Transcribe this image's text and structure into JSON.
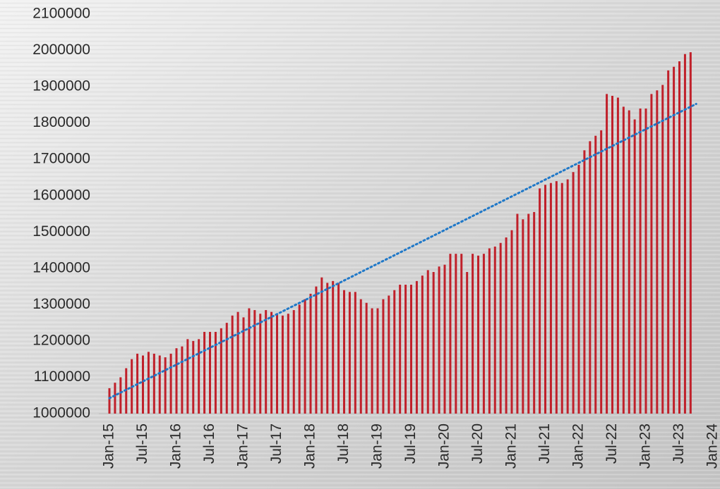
{
  "chart_data": {
    "type": "bar",
    "categories": [
      "Jan-15",
      null,
      null,
      null,
      null,
      null,
      "Jul-15",
      null,
      null,
      null,
      null,
      null,
      "Jan-16",
      null,
      null,
      null,
      null,
      null,
      "Jul-16",
      null,
      null,
      null,
      null,
      null,
      "Jan-17",
      null,
      null,
      null,
      null,
      null,
      "Jul-17",
      null,
      null,
      null,
      null,
      null,
      "Jan-18",
      null,
      null,
      null,
      null,
      null,
      "Jul-18",
      null,
      null,
      null,
      null,
      null,
      "Jan-19",
      null,
      null,
      null,
      null,
      null,
      "Jul-19",
      null,
      null,
      null,
      null,
      null,
      "Jan-20",
      null,
      null,
      null,
      null,
      null,
      "Jul-20",
      null,
      null,
      null,
      null,
      null,
      "Jan-21",
      null,
      null,
      null,
      null,
      null,
      "Jul-21",
      null,
      null,
      null,
      null,
      null,
      "Jan-22",
      null,
      null,
      null,
      null,
      null,
      "Jul-22",
      null,
      null,
      null,
      null,
      null,
      "Jan-23",
      null,
      null,
      null,
      null,
      null,
      "Jul-23",
      null,
      null,
      null,
      null,
      null,
      "Jan-24"
    ],
    "values": [
      1070000,
      1085000,
      1100000,
      1125000,
      1150000,
      1165000,
      1160000,
      1170000,
      1165000,
      1160000,
      1155000,
      1165000,
      1180000,
      1185000,
      1205000,
      1200000,
      1205000,
      1225000,
      1225000,
      1225000,
      1235000,
      1250000,
      1270000,
      1280000,
      1265000,
      1290000,
      1285000,
      1275000,
      1285000,
      1280000,
      1275000,
      1270000,
      1275000,
      1285000,
      1300000,
      1315000,
      1330000,
      1350000,
      1375000,
      1360000,
      1365000,
      1360000,
      1340000,
      1335000,
      1335000,
      1315000,
      1305000,
      1290000,
      1290000,
      1315000,
      1325000,
      1340000,
      1355000,
      1355000,
      1355000,
      1365000,
      1380000,
      1395000,
      1390000,
      1405000,
      1410000,
      1440000,
      1440000,
      1440000,
      1390000,
      1440000,
      1435000,
      1440000,
      1455000,
      1460000,
      1470000,
      1485000,
      1505000,
      1550000,
      1535000,
      1550000,
      1555000,
      1620000,
      1630000,
      1635000,
      1640000,
      1635000,
      1645000,
      1665000,
      1685000,
      1725000,
      1750000,
      1765000,
      1780000,
      1880000,
      1875000,
      1870000,
      1845000,
      1835000,
      1810000,
      1840000,
      1840000,
      1880000,
      1890000,
      1905000,
      1945000,
      1955000,
      1970000,
      1990000,
      1995000,
      null,
      null,
      null,
      null
    ],
    "color": "#c0202a",
    "trendline": {
      "type": "linear",
      "color": "#1f78c8"
    },
    "ylim": [
      1000000,
      2100000
    ],
    "yticks": [
      1000000,
      1100000,
      1200000,
      1300000,
      1400000,
      1500000,
      1600000,
      1700000,
      1800000,
      1900000,
      2000000,
      2100000
    ]
  }
}
